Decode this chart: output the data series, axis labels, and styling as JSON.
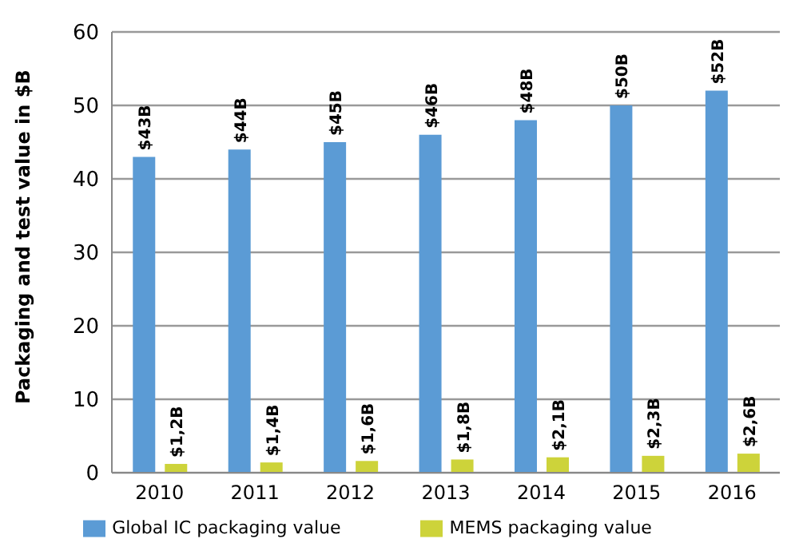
{
  "chart_data": {
    "type": "bar",
    "ylabel": "Packaging and test value in $B",
    "categories": [
      "2010",
      "2011",
      "2012",
      "2013",
      "2014",
      "2015",
      "2016"
    ],
    "series": [
      {
        "name": "Global IC packaging value",
        "color": "#5b9bd5",
        "values": [
          43,
          44,
          45,
          46,
          48,
          50,
          52
        ],
        "value_labels": [
          "$43B",
          "$44B",
          "$45B",
          "$46B",
          "$48B",
          "$50B",
          "$52B"
        ]
      },
      {
        "name": "MEMS packaging value",
        "color": "#cdd33a",
        "values": [
          1.2,
          1.4,
          1.6,
          1.8,
          2.1,
          2.3,
          2.6
        ],
        "value_labels": [
          "$1,2B",
          "$1,4B",
          "$1,6B",
          "$1,8B",
          "$2,1B",
          "$2,3B",
          "$2,6B"
        ]
      }
    ],
    "ylim": [
      0,
      60
    ],
    "yticks": [
      0,
      10,
      20,
      30,
      40,
      50,
      60
    ],
    "grid": "y",
    "legend": "bottom"
  }
}
